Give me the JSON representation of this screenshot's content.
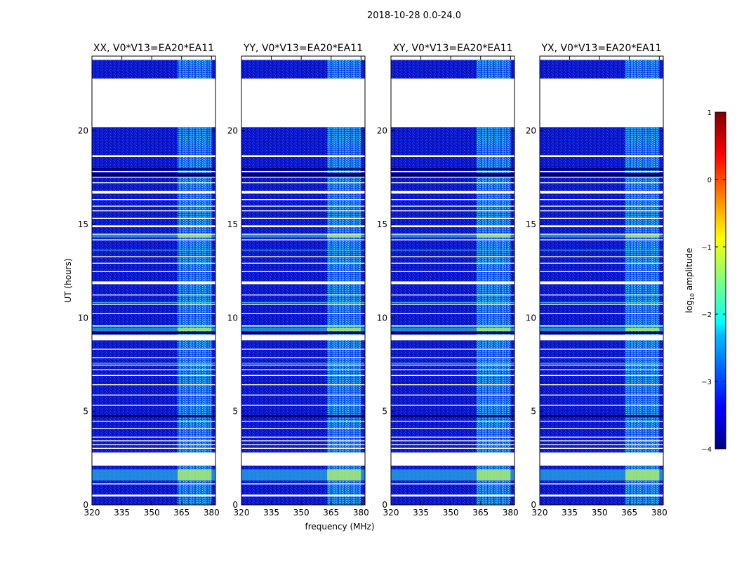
{
  "chart_data": {
    "type": "heatmap",
    "suptitle": "2018-10-28 0.0-24.0",
    "xlabel": "frequency (MHz)",
    "ylabel": "UT (hours)",
    "xlim": [
      320,
      382
    ],
    "ylim": [
      0,
      24
    ],
    "xticks": [
      320,
      335,
      350,
      365,
      380
    ],
    "yticks": [
      0,
      5,
      10,
      15,
      20
    ],
    "panels": [
      {
        "title": "XX, V0*V13=EA20*EA11"
      },
      {
        "title": "YY, V0*V13=EA20*EA11"
      },
      {
        "title": "XY, V0*V13=EA20*EA11"
      },
      {
        "title": "YX, V0*V13=EA20*EA11"
      }
    ],
    "colorbar": {
      "label": "log10 amplitude",
      "range": [
        -4,
        1
      ],
      "ticks": [
        1,
        0,
        -1,
        -2,
        -3,
        -4
      ],
      "colormap": "jet"
    },
    "flagged_gaps_hours": [
      [
        0.45,
        0.55
      ],
      [
        1.1,
        1.15
      ],
      [
        2.1,
        2.8
      ],
      [
        3.0,
        3.05
      ],
      [
        3.2,
        3.25
      ],
      [
        3.4,
        3.45
      ],
      [
        3.6,
        3.65
      ],
      [
        4.05,
        4.1
      ],
      [
        4.45,
        4.5
      ],
      [
        5.3,
        5.35
      ],
      [
        5.85,
        5.9
      ],
      [
        6.4,
        6.45
      ],
      [
        6.9,
        6.95
      ],
      [
        7.2,
        7.25
      ],
      [
        7.45,
        7.5
      ],
      [
        7.85,
        7.9
      ],
      [
        8.3,
        8.35
      ],
      [
        8.8,
        9.1
      ],
      [
        9.55,
        9.6
      ],
      [
        10.2,
        10.25
      ],
      [
        10.7,
        10.75
      ],
      [
        11.2,
        11.25
      ],
      [
        11.8,
        11.95
      ],
      [
        12.45,
        12.5
      ],
      [
        12.9,
        12.95
      ],
      [
        13.25,
        13.3
      ],
      [
        14.15,
        14.2
      ],
      [
        14.45,
        14.5
      ],
      [
        14.85,
        14.95
      ],
      [
        15.3,
        15.35
      ],
      [
        15.7,
        15.75
      ],
      [
        15.95,
        16.0
      ],
      [
        16.3,
        16.35
      ],
      [
        16.65,
        16.8
      ],
      [
        17.2,
        17.25
      ],
      [
        17.5,
        17.55
      ],
      [
        17.8,
        17.85
      ],
      [
        18.6,
        18.7
      ],
      [
        20.2,
        22.8
      ]
    ],
    "quiet_bands_hours": [
      [
        7.55,
        7.6
      ],
      [
        9.5,
        9.55
      ],
      [
        10.8,
        10.85
      ],
      [
        13.6,
        13.65
      ]
    ],
    "dark_bands_hours": [
      [
        17.55,
        17.75
      ],
      [
        17.9,
        18.0
      ],
      [
        4.7,
        4.8
      ],
      [
        9.15,
        9.25
      ]
    ],
    "bright_bands_hours": [
      [
        1.3,
        1.9
      ],
      [
        9.3,
        9.45
      ],
      [
        14.3,
        14.45
      ]
    ],
    "rfi_band_mhz": [
      363,
      380
    ]
  }
}
